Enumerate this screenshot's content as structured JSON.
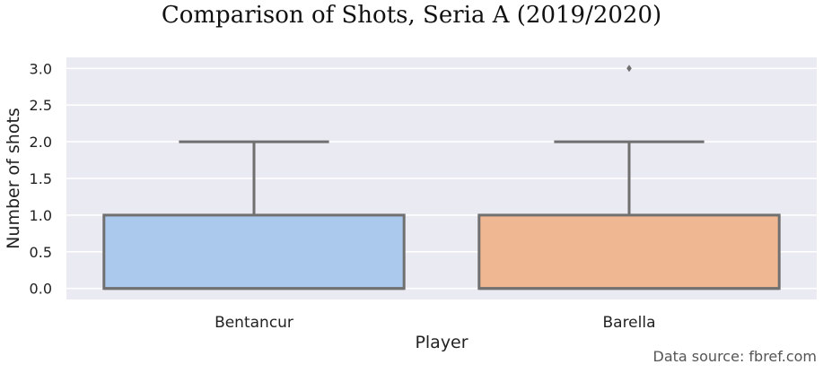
{
  "chart_data": {
    "type": "box",
    "title": "Comparison of Shots, Seria A (2019/2020)",
    "xlabel": "Player",
    "ylabel": "Number of shots",
    "ylim": [
      -0.15,
      3.15
    ],
    "yticks": [
      "0.0",
      "0.5",
      "1.0",
      "1.5",
      "2.0",
      "2.5",
      "3.0"
    ],
    "grid": true,
    "categories": [
      "Bentancur",
      "Barella"
    ],
    "boxes": [
      {
        "category": "Bentancur",
        "min": 0,
        "q1": 0,
        "median": 0,
        "q3": 1,
        "max": 2,
        "outliers": [],
        "color": "#abc9ec"
      },
      {
        "category": "Barella",
        "min": 0,
        "q1": 0,
        "median": 0,
        "q3": 1,
        "max": 2,
        "outliers": [
          3
        ],
        "color": "#f0b793"
      }
    ],
    "source": "Data source: fbref.com"
  },
  "colors": {
    "plot_background": "#eaeaf2",
    "grid": "#ffffff",
    "box_edge": "#707070"
  }
}
